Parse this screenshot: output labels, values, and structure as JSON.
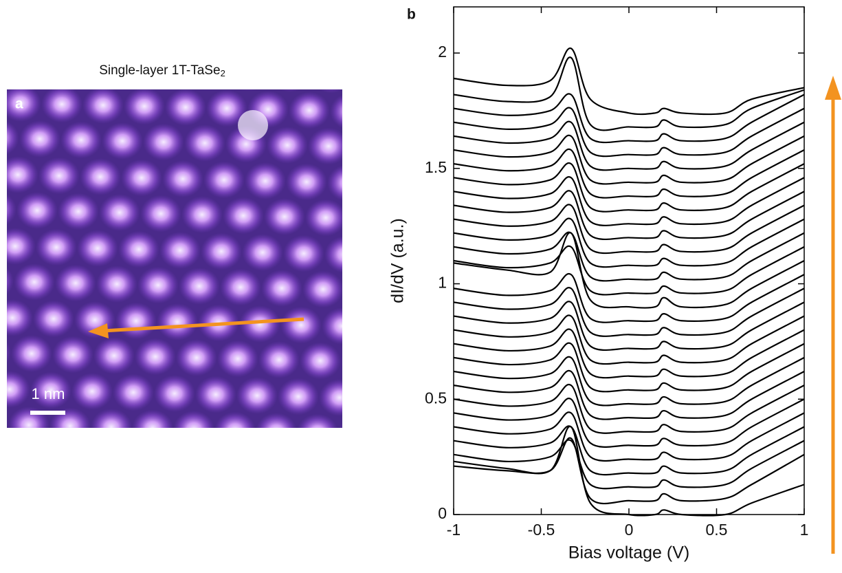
{
  "panel_a": {
    "label": "a",
    "title": {
      "text": "Single-layer 1T-TaSe",
      "subscript": "2"
    },
    "scale_bar": "1 nm"
  },
  "chart_data": {
    "type": "line",
    "label": "b",
    "xlabel": "Bias voltage (V)",
    "ylabel": "dI/dV (a.u.)",
    "xlim": [
      -1,
      1
    ],
    "ylim": [
      0,
      2.2
    ],
    "xticks": [
      -1,
      -0.5,
      0,
      0.5,
      1
    ],
    "yticks": [
      0,
      0.5,
      1,
      1.5,
      2
    ],
    "line_color": "#000000",
    "x": [
      -1,
      -0.7,
      -0.45,
      -0.33,
      -0.22,
      0,
      0.15,
      0.2,
      0.3,
      0.55,
      0.7,
      1
    ],
    "series": [
      {
        "values": [
          0.23,
          0.2,
          0.19,
          0.38,
          0.05,
          0,
          0,
          0.02,
          0,
          0,
          0.05,
          0.13
        ]
      },
      {
        "values": [
          0.21,
          0.19,
          0.19,
          0.33,
          0.07,
          0.06,
          0.06,
          0.09,
          0.06,
          0.07,
          0.13,
          0.26
        ]
      },
      {
        "values": [
          0.26,
          0.23,
          0.25,
          0.32,
          0.13,
          0.12,
          0.12,
          0.15,
          0.12,
          0.13,
          0.2,
          0.32
        ]
      },
      {
        "values": [
          0.32,
          0.29,
          0.31,
          0.38,
          0.19,
          0.18,
          0.18,
          0.21,
          0.18,
          0.19,
          0.26,
          0.38
        ]
      },
      {
        "values": [
          0.38,
          0.35,
          0.37,
          0.44,
          0.25,
          0.24,
          0.24,
          0.27,
          0.24,
          0.25,
          0.32,
          0.44
        ]
      },
      {
        "values": [
          0.44,
          0.41,
          0.43,
          0.5,
          0.31,
          0.3,
          0.3,
          0.33,
          0.3,
          0.31,
          0.38,
          0.5
        ]
      },
      {
        "values": [
          0.5,
          0.47,
          0.49,
          0.56,
          0.37,
          0.36,
          0.36,
          0.39,
          0.36,
          0.37,
          0.44,
          0.56
        ]
      },
      {
        "values": [
          0.56,
          0.53,
          0.55,
          0.62,
          0.43,
          0.42,
          0.42,
          0.45,
          0.42,
          0.43,
          0.5,
          0.62
        ]
      },
      {
        "values": [
          0.62,
          0.59,
          0.61,
          0.68,
          0.49,
          0.48,
          0.48,
          0.51,
          0.48,
          0.49,
          0.56,
          0.68
        ]
      },
      {
        "values": [
          0.68,
          0.65,
          0.67,
          0.74,
          0.55,
          0.54,
          0.54,
          0.57,
          0.54,
          0.55,
          0.62,
          0.74
        ]
      },
      {
        "values": [
          0.74,
          0.71,
          0.73,
          0.8,
          0.61,
          0.6,
          0.6,
          0.63,
          0.6,
          0.61,
          0.68,
          0.8
        ]
      },
      {
        "values": [
          0.8,
          0.77,
          0.79,
          0.86,
          0.67,
          0.66,
          0.66,
          0.69,
          0.66,
          0.67,
          0.74,
          0.86
        ]
      },
      {
        "values": [
          0.86,
          0.83,
          0.85,
          0.92,
          0.73,
          0.72,
          0.72,
          0.75,
          0.72,
          0.73,
          0.8,
          0.92
        ]
      },
      {
        "values": [
          0.92,
          0.89,
          0.91,
          0.98,
          0.79,
          0.78,
          0.78,
          0.81,
          0.78,
          0.79,
          0.86,
          0.98
        ]
      },
      {
        "values": [
          0.98,
          0.95,
          0.97,
          1.04,
          0.85,
          0.84,
          0.84,
          0.87,
          0.84,
          0.85,
          0.92,
          1.04
        ]
      },
      {
        "values": [
          1.09,
          1.06,
          1.05,
          1.22,
          0.93,
          0.9,
          0.9,
          0.94,
          0.9,
          0.91,
          0.98,
          1.1
        ]
      },
      {
        "values": [
          1.1,
          1.07,
          1.09,
          1.16,
          0.97,
          0.96,
          0.96,
          0.99,
          0.96,
          0.97,
          1.04,
          1.16
        ]
      },
      {
        "values": [
          1.16,
          1.13,
          1.15,
          1.22,
          1.03,
          1.02,
          1.02,
          1.05,
          1.02,
          1.03,
          1.1,
          1.22
        ]
      },
      {
        "values": [
          1.22,
          1.19,
          1.21,
          1.28,
          1.09,
          1.08,
          1.08,
          1.11,
          1.08,
          1.09,
          1.16,
          1.28
        ]
      },
      {
        "values": [
          1.28,
          1.25,
          1.27,
          1.34,
          1.15,
          1.14,
          1.14,
          1.17,
          1.14,
          1.15,
          1.22,
          1.34
        ]
      },
      {
        "values": [
          1.34,
          1.31,
          1.33,
          1.4,
          1.21,
          1.2,
          1.2,
          1.23,
          1.2,
          1.21,
          1.28,
          1.4
        ]
      },
      {
        "values": [
          1.4,
          1.37,
          1.39,
          1.46,
          1.27,
          1.26,
          1.26,
          1.29,
          1.26,
          1.27,
          1.34,
          1.46
        ]
      },
      {
        "values": [
          1.46,
          1.43,
          1.45,
          1.52,
          1.33,
          1.32,
          1.32,
          1.35,
          1.32,
          1.33,
          1.4,
          1.52
        ]
      },
      {
        "values": [
          1.52,
          1.49,
          1.51,
          1.58,
          1.39,
          1.38,
          1.38,
          1.41,
          1.38,
          1.39,
          1.46,
          1.58
        ]
      },
      {
        "values": [
          1.58,
          1.55,
          1.57,
          1.64,
          1.45,
          1.44,
          1.44,
          1.47,
          1.44,
          1.45,
          1.52,
          1.64
        ]
      },
      {
        "values": [
          1.64,
          1.61,
          1.63,
          1.7,
          1.51,
          1.5,
          1.5,
          1.53,
          1.5,
          1.51,
          1.58,
          1.7
        ]
      },
      {
        "values": [
          1.7,
          1.67,
          1.69,
          1.76,
          1.57,
          1.56,
          1.56,
          1.59,
          1.56,
          1.57,
          1.64,
          1.76
        ]
      },
      {
        "values": [
          1.76,
          1.73,
          1.75,
          1.82,
          1.63,
          1.62,
          1.62,
          1.65,
          1.62,
          1.63,
          1.7,
          1.82
        ]
      },
      {
        "values": [
          1.82,
          1.79,
          1.81,
          1.98,
          1.69,
          1.68,
          1.68,
          1.71,
          1.68,
          1.69,
          1.76,
          1.84
        ]
      },
      {
        "values": [
          1.89,
          1.86,
          1.88,
          2.02,
          1.8,
          1.74,
          1.74,
          1.76,
          1.74,
          1.74,
          1.8,
          1.85
        ]
      }
    ]
  }
}
